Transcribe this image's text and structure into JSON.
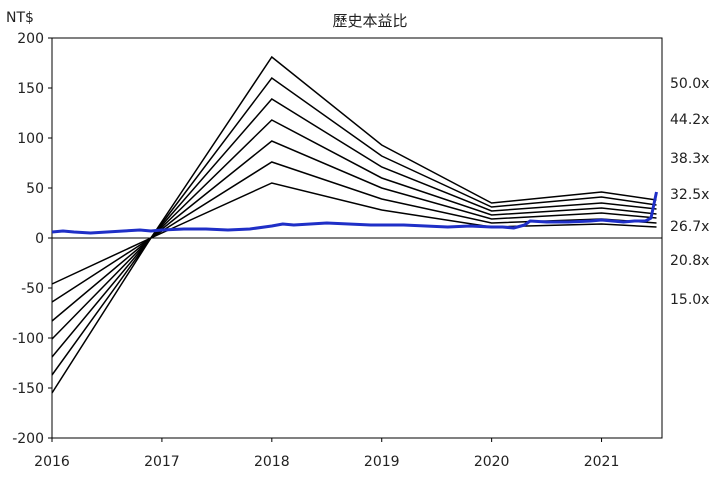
{
  "chart_data": {
    "type": "line",
    "title": "歷史本益比",
    "ylabel": "NT$",
    "xlim": [
      2016,
      2021.55
    ],
    "ylim": [
      -200,
      200
    ],
    "x_ticks": [
      "2016",
      "2017",
      "2018",
      "2019",
      "2020",
      "2021"
    ],
    "y_ticks": [
      200,
      150,
      100,
      50,
      0,
      -50,
      -100,
      -150,
      -200
    ],
    "grid": false,
    "band_x": [
      2016.0,
      2016.9,
      2018.0,
      2019.0,
      2020.0,
      2021.0,
      2021.5
    ],
    "band_colors": {
      "line": "#000000",
      "price": "#1f2fc7"
    },
    "bands": [
      {
        "label": "50.0x",
        "values": [
          -155,
          0,
          181,
          93,
          35,
          46,
          38
        ]
      },
      {
        "label": "44.2x",
        "values": [
          -137,
          0,
          160,
          82,
          31,
          41,
          33
        ]
      },
      {
        "label": "38.3x",
        "values": [
          -119,
          0,
          139,
          71,
          27,
          35,
          29
        ]
      },
      {
        "label": "32.5x",
        "values": [
          -101,
          0,
          118,
          60,
          23,
          30,
          24
        ]
      },
      {
        "label": "26.7x",
        "values": [
          -83,
          0,
          97,
          50,
          19,
          25,
          20
        ]
      },
      {
        "label": "20.8x",
        "values": [
          -64,
          0,
          76,
          39,
          15,
          19,
          15
        ]
      },
      {
        "label": "15.0x",
        "values": [
          -46,
          0,
          55,
          28,
          11,
          14,
          11
        ]
      }
    ],
    "price_series": {
      "x": [
        2016.0,
        2016.1,
        2016.2,
        2016.35,
        2016.5,
        2016.65,
        2016.8,
        2016.9,
        2017.0,
        2017.2,
        2017.4,
        2017.6,
        2017.8,
        2018.0,
        2018.1,
        2018.2,
        2018.35,
        2018.5,
        2018.7,
        2018.9,
        2019.0,
        2019.2,
        2019.4,
        2019.6,
        2019.8,
        2020.0,
        2020.1,
        2020.2,
        2020.3,
        2020.35,
        2020.5,
        2020.7,
        2020.9,
        2021.0,
        2021.1,
        2021.2,
        2021.3,
        2021.4,
        2021.45,
        2021.5
      ],
      "values": [
        6,
        7,
        6,
        5,
        6,
        7,
        8,
        7,
        8,
        9,
        9,
        8,
        9,
        12,
        14,
        13,
        14,
        15,
        14,
        13,
        13,
        13,
        12,
        11,
        12,
        11,
        11,
        10,
        13,
        17,
        16,
        16,
        17,
        18,
        17,
        16,
        17,
        17,
        20,
        46
      ]
    }
  }
}
